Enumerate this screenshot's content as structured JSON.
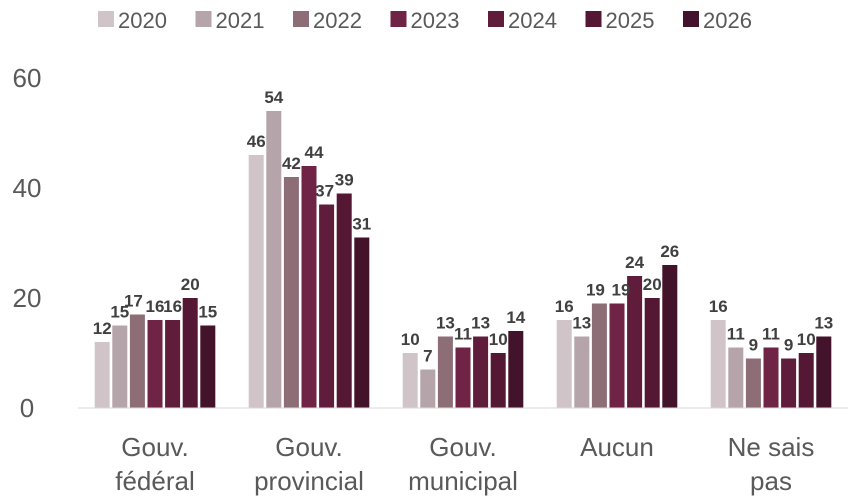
{
  "chart_data": {
    "type": "bar",
    "categories": [
      [
        "Gouv.",
        "fédéral"
      ],
      [
        "Gouv.",
        "provincial"
      ],
      [
        "Gouv.",
        "municipal"
      ],
      [
        "Aucun"
      ],
      [
        "Ne sais",
        "pas"
      ]
    ],
    "series": [
      {
        "name": "2020",
        "color": "#D0C4C8",
        "values": [
          12,
          46,
          10,
          16,
          16
        ]
      },
      {
        "name": "2021",
        "color": "#B5A4AA",
        "values": [
          15,
          54,
          7,
          13,
          11
        ]
      },
      {
        "name": "2022",
        "color": "#8E6E76",
        "values": [
          17,
          42,
          13,
          19,
          9
        ]
      },
      {
        "name": "2023",
        "color": "#6F2345",
        "values": [
          16,
          44,
          11,
          19,
          11
        ]
      },
      {
        "name": "2024",
        "color": "#5F1C3B",
        "values": [
          16,
          37,
          13,
          24,
          9
        ]
      },
      {
        "name": "2025",
        "color": "#541734",
        "values": [
          20,
          39,
          10,
          20,
          10
        ]
      },
      {
        "name": "2026",
        "color": "#43122B",
        "values": [
          15,
          31,
          14,
          26,
          13
        ]
      }
    ],
    "yticks": [
      0,
      20,
      40,
      60
    ],
    "ylim": [
      0,
      60
    ],
    "grid": false,
    "legend_position": "top",
    "data_labels": true
  }
}
